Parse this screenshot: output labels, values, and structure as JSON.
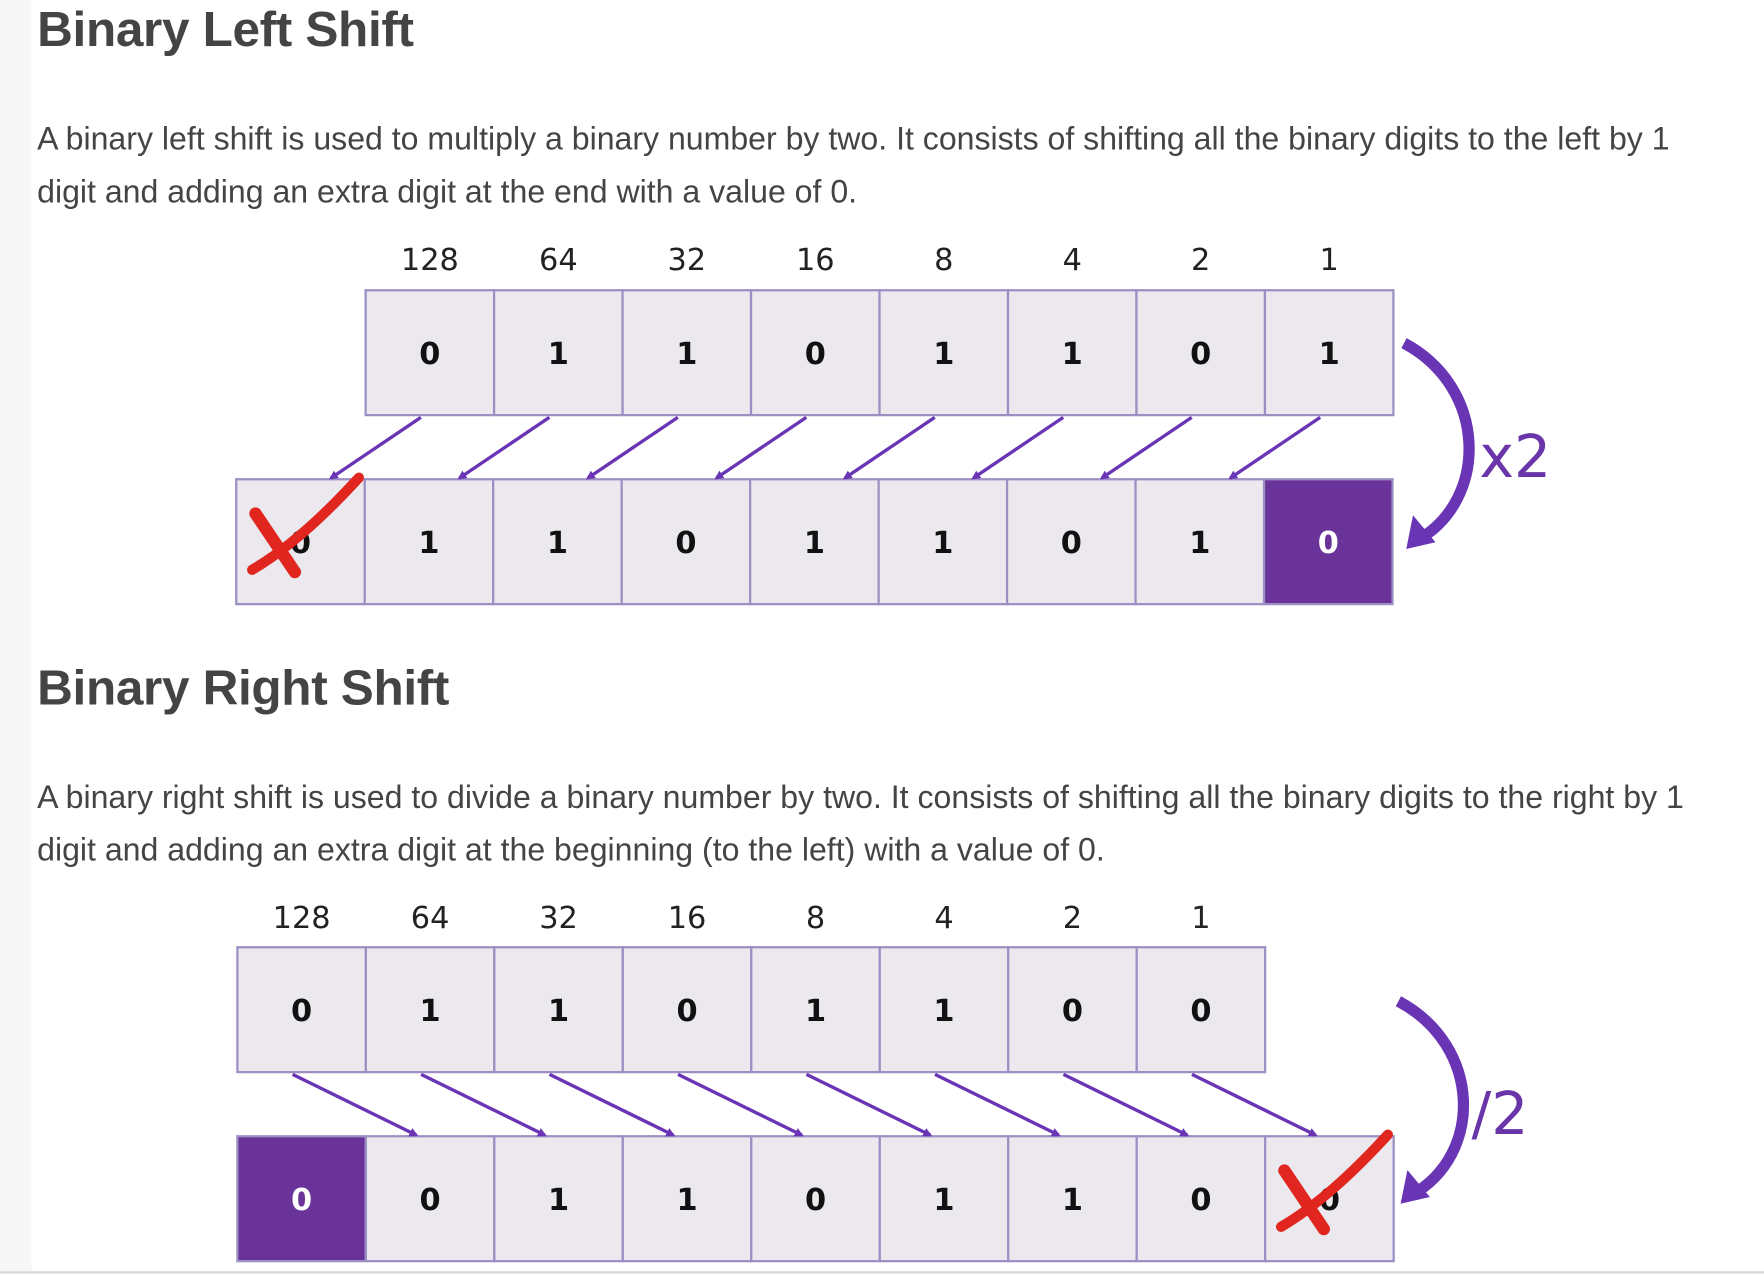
{
  "sections": [
    {
      "title": "Binary Left Shift",
      "paragraph": "A binary left shift is used to multiply a binary number by two. It consists of shifting all the binary digits to the left by 1 digit and adding an extra digit at the end with a value of 0.",
      "diagram": {
        "weights": [
          "128",
          "64",
          "32",
          "16",
          "8",
          "4",
          "2",
          "1"
        ],
        "top_bits": [
          "0",
          "1",
          "1",
          "0",
          "1",
          "1",
          "0",
          "1"
        ],
        "bottom_bits": [
          "0",
          "1",
          "1",
          "0",
          "1",
          "1",
          "0",
          "1",
          "0"
        ],
        "highlighted_index": 8,
        "crossed_index": 0,
        "operation": "x2"
      }
    },
    {
      "title": "Binary Right Shift",
      "paragraph": "A binary right shift is used to divide a binary number by two. It consists of shifting all the binary digits to the right by 1 digit and adding an extra digit at the beginning (to the left) with a value of 0.",
      "diagram": {
        "weights": [
          "128",
          "64",
          "32",
          "16",
          "8",
          "4",
          "2",
          "1"
        ],
        "top_bits": [
          "0",
          "1",
          "1",
          "0",
          "1",
          "1",
          "0",
          "0"
        ],
        "bottom_bits": [
          "0",
          "0",
          "1",
          "1",
          "0",
          "1",
          "1",
          "0",
          "0"
        ],
        "highlighted_index": 0,
        "crossed_index": 8,
        "operation": "/2"
      }
    }
  ],
  "colors": {
    "cell": "#ebe8ee",
    "cell_border": "#9d8fc4",
    "highlight": "#6a3399",
    "arrow": "#6a35b5",
    "cross": "#e0261e",
    "text": "#444444"
  }
}
